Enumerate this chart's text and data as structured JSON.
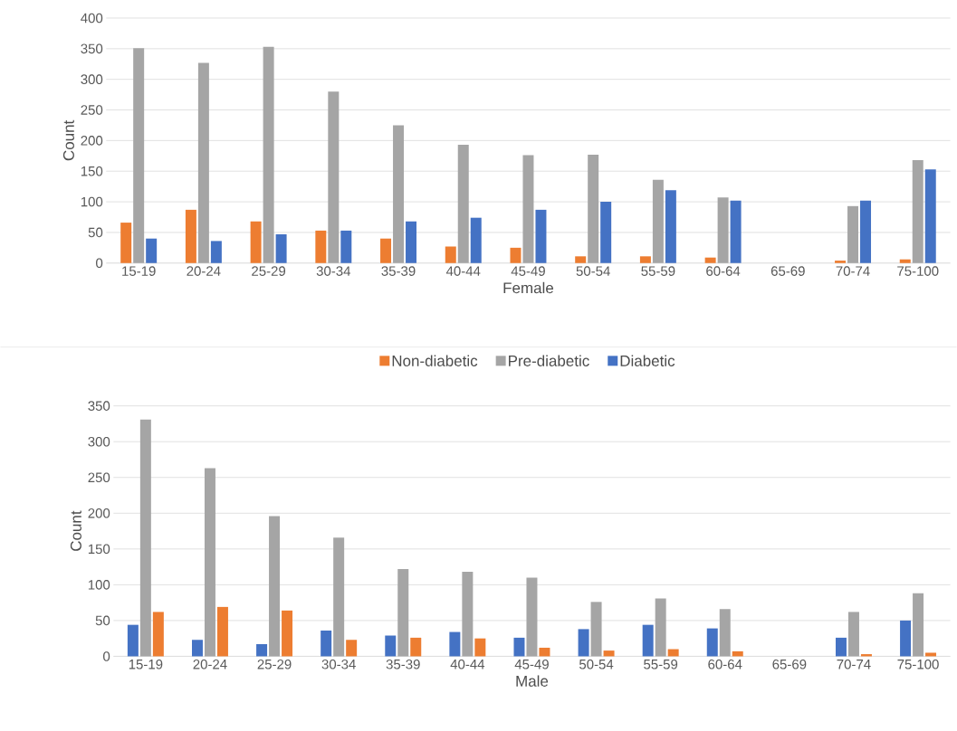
{
  "chart_data": [
    {
      "type": "bar",
      "xlabel": "Female",
      "ylabel": "Count",
      "categories": [
        "15-19",
        "20-24",
        "25-29",
        "30-34",
        "35-39",
        "40-44",
        "45-49",
        "50-54",
        "55-59",
        "60-64",
        "65-69",
        "70-74",
        "75-100"
      ],
      "series": [
        {
          "name": "Non-diabetic",
          "color": "#ed7d31",
          "values": [
            66,
            87,
            68,
            53,
            40,
            27,
            25,
            11,
            11,
            9,
            null,
            4,
            6
          ]
        },
        {
          "name": "Pre-diabetic",
          "color": "#a5a5a5",
          "values": [
            351,
            327,
            353,
            280,
            225,
            193,
            176,
            177,
            136,
            107,
            null,
            93,
            168
          ]
        },
        {
          "name": "Diabetic",
          "color": "#4472c4",
          "values": [
            40,
            36,
            47,
            53,
            68,
            74,
            87,
            100,
            119,
            102,
            null,
            102,
            153
          ]
        }
      ],
      "ylim": [
        0,
        400
      ],
      "yticks": [
        0,
        50,
        100,
        150,
        200,
        250,
        300,
        350,
        400
      ],
      "grid": "y",
      "legend": "bottom"
    },
    {
      "type": "bar",
      "xlabel": "Male",
      "ylabel": "Count",
      "categories": [
        "15-19",
        "20-24",
        "25-29",
        "30-34",
        "35-39",
        "40-44",
        "45-49",
        "50-54",
        "55-59",
        "60-64",
        "65-69",
        "70-74",
        "75-100"
      ],
      "series": [
        {
          "color": "#4472c4",
          "values": [
            44,
            23,
            17,
            36,
            29,
            34,
            26,
            38,
            44,
            39,
            null,
            26,
            50
          ]
        },
        {
          "color": "#a5a5a5",
          "values": [
            331,
            263,
            196,
            166,
            122,
            118,
            110,
            76,
            81,
            66,
            null,
            62,
            88
          ]
        },
        {
          "color": "#ed7d31",
          "values": [
            62,
            69,
            64,
            23,
            26,
            25,
            12,
            8,
            10,
            7,
            null,
            3,
            5
          ]
        }
      ],
      "ylim": [
        0,
        350
      ],
      "yticks": [
        0,
        50,
        100,
        150,
        200,
        250,
        300,
        350
      ],
      "grid": "y"
    }
  ]
}
